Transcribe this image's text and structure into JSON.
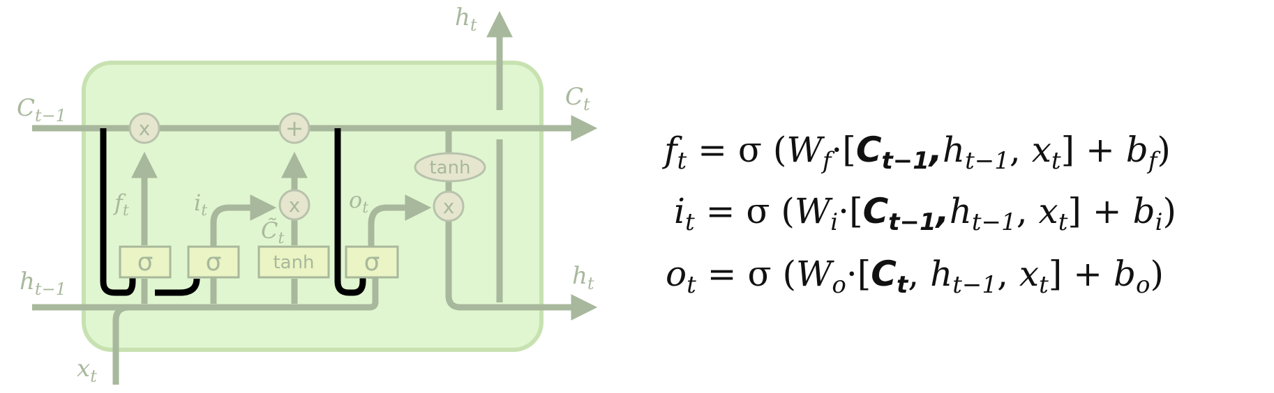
{
  "diagram": {
    "labels": {
      "c_prev": "C",
      "c_prev_sub": "t−1",
      "c_next": "C",
      "c_next_sub": "t",
      "h_prev": "h",
      "h_prev_sub": "t−1",
      "h_next": "h",
      "h_next_sub": "t",
      "h_top": "h",
      "h_top_sub": "t",
      "x_in": "x",
      "x_in_sub": "t",
      "f_gate": "f",
      "f_gate_sub": "t",
      "i_gate": "i",
      "i_gate_sub": "t",
      "o_gate": "o",
      "o_gate_sub": "t",
      "c_tilde": "C̃",
      "c_tilde_sub": "t"
    },
    "ops": {
      "multiply": "x",
      "add": "+"
    },
    "layers": {
      "sigma": "σ",
      "tanh": "tanh"
    }
  },
  "equations": [
    {
      "lhs": "f",
      "lhs_sub": "t",
      "eq": " = σ (",
      "w": "W",
      "w_sub": "f",
      "dot": "·[",
      "c": "C",
      "c_sub": "t−1",
      "rest1": ",",
      "h": "h",
      "h_sub": "t−1",
      "comma": ", ",
      "x": "x",
      "x_sub": "t",
      "close": "]  +  ",
      "b": "b",
      "b_sub": "f",
      "end": ")"
    },
    {
      "lhs": "i",
      "lhs_sub": "t",
      "eq": " = σ (",
      "w": "W",
      "w_sub": "i",
      "dot": "·[",
      "c": "C",
      "c_sub": "t−1",
      "rest1": ",",
      "h": "h",
      "h_sub": "t−1",
      "comma": ", ",
      "x": "x",
      "x_sub": "t",
      "close": "]  +  ",
      "b": "b",
      "b_sub": "i",
      "end": ")"
    },
    {
      "lhs": "o",
      "lhs_sub": "t",
      "eq": " = σ (",
      "w": "W",
      "w_sub": "o",
      "dot": "·[",
      "c": "C",
      "c_sub": "t",
      "rest1": ", ",
      "h": "h",
      "h_sub": "t−1",
      "comma": ", ",
      "x": "x",
      "x_sub": "t",
      "close": "]  +  ",
      "b": "b",
      "b_sub": "o",
      "end": ")"
    }
  ]
}
